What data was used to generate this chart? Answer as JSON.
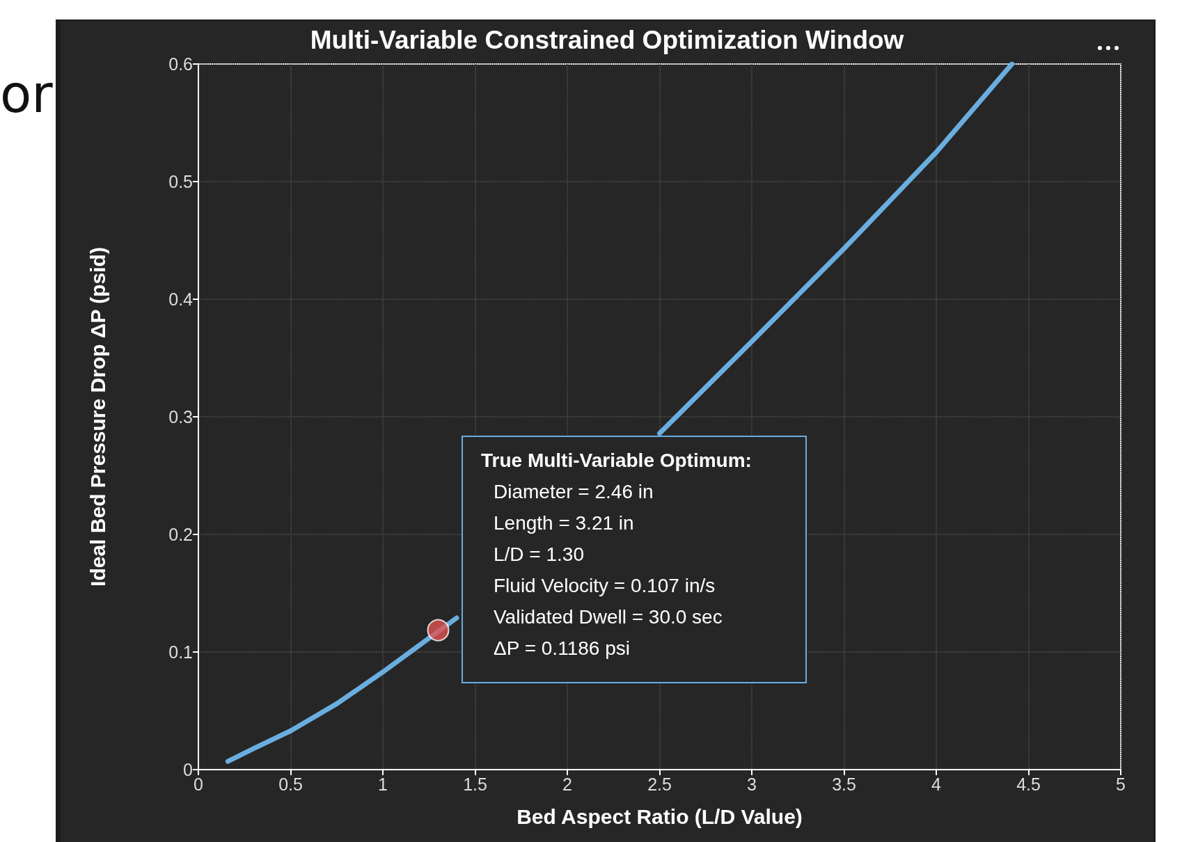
{
  "chart_data": {
    "type": "line",
    "title": "Multi-Variable Constrained Optimization Window",
    "xlabel": "Bed Aspect Ratio (L/D Value)",
    "ylabel": "Ideal Bed Pressure Drop ΔP (psid)",
    "x": [
      0.16,
      0.3,
      0.5,
      0.75,
      1.0,
      1.2,
      1.4,
      2.0,
      2.5,
      3.0,
      3.5,
      4.0,
      4.41
    ],
    "series": [
      {
        "color": "#6aaee0",
        "values": [
          0.007,
          0.018,
          0.033,
          0.056,
          0.083,
          0.106,
          0.129,
          null,
          0.286,
          0.364,
          0.443,
          0.525,
          0.6
        ]
      },
      {
        "type": "scatter",
        "color": "#e05252",
        "marker": "circle",
        "x": [
          1.3
        ],
        "values": [
          0.1186
        ]
      }
    ],
    "xlim": [
      0,
      5
    ],
    "xticks": [
      0,
      0.5,
      1,
      1.5,
      2,
      2.5,
      3,
      3.5,
      4,
      4.5,
      5
    ],
    "ylim": [
      0,
      0.6
    ],
    "yticks": [
      0,
      0.1,
      0.2,
      0.3,
      0.4,
      0.5,
      0.6
    ],
    "grid": true,
    "marker": "none",
    "line_style": "solid",
    "annotations": [
      "True Multi-Variable Optimum:\nDiameter = 2.46 in\nLength = 3.21 in\nL/D = 1.30\nFluid Velocity = 0.107 in/s\nValidated Dwell = 30.0 sec\nΔP = 0.1186 psi",
      "or"
    ]
  }
}
